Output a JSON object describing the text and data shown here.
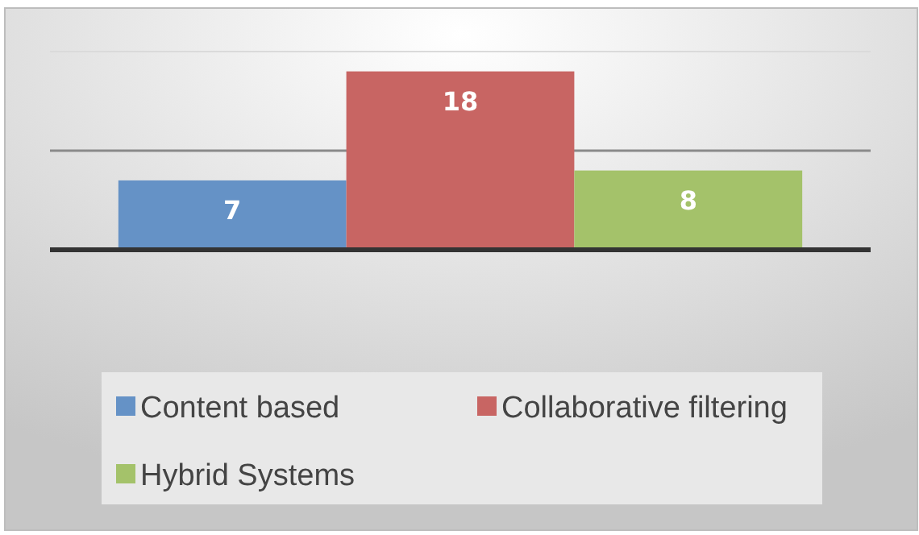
{
  "chart_data": {
    "type": "bar",
    "categories": [
      null
    ],
    "series": [
      {
        "name": "Content based",
        "color": "#6592c6",
        "values": [
          7
        ]
      },
      {
        "name": "Collaborative filtering",
        "color": "#c86563",
        "values": [
          18
        ]
      },
      {
        "name": "Hybrid Systems",
        "color": "#a4c26a",
        "values": [
          8
        ]
      }
    ],
    "ylim": [
      0,
      20
    ],
    "yticks": [
      0,
      10,
      20
    ],
    "tick_labels": false,
    "grid": "y",
    "data_labels": true,
    "legend": "bottom"
  }
}
